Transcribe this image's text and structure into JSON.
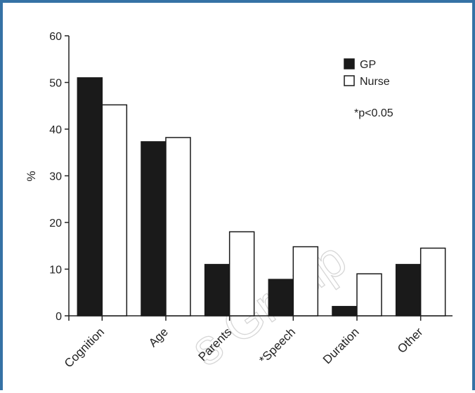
{
  "watermark": "s Group",
  "chart_data": {
    "type": "bar",
    "title": "",
    "xlabel": "",
    "ylabel": "%",
    "ylim": [
      0,
      60
    ],
    "yticks": [
      0,
      10,
      20,
      30,
      40,
      50,
      60
    ],
    "categories": [
      "Cognition",
      "Age",
      "Parents",
      "*Speech",
      "Duration",
      "Other"
    ],
    "series": [
      {
        "name": "GP",
        "color": "#1a1a1a",
        "values": [
          51.0,
          37.3,
          11.0,
          7.8,
          2.0,
          11.0
        ]
      },
      {
        "name": "Nurse",
        "color": "#ffffff",
        "values": [
          45.2,
          38.2,
          18.0,
          14.8,
          9.0,
          14.5
        ]
      }
    ],
    "annotation": "*p<0.05",
    "legend_position": "top-right",
    "grid": false
  },
  "colors": {
    "frame": "#3572a5",
    "axis": "#222222"
  }
}
